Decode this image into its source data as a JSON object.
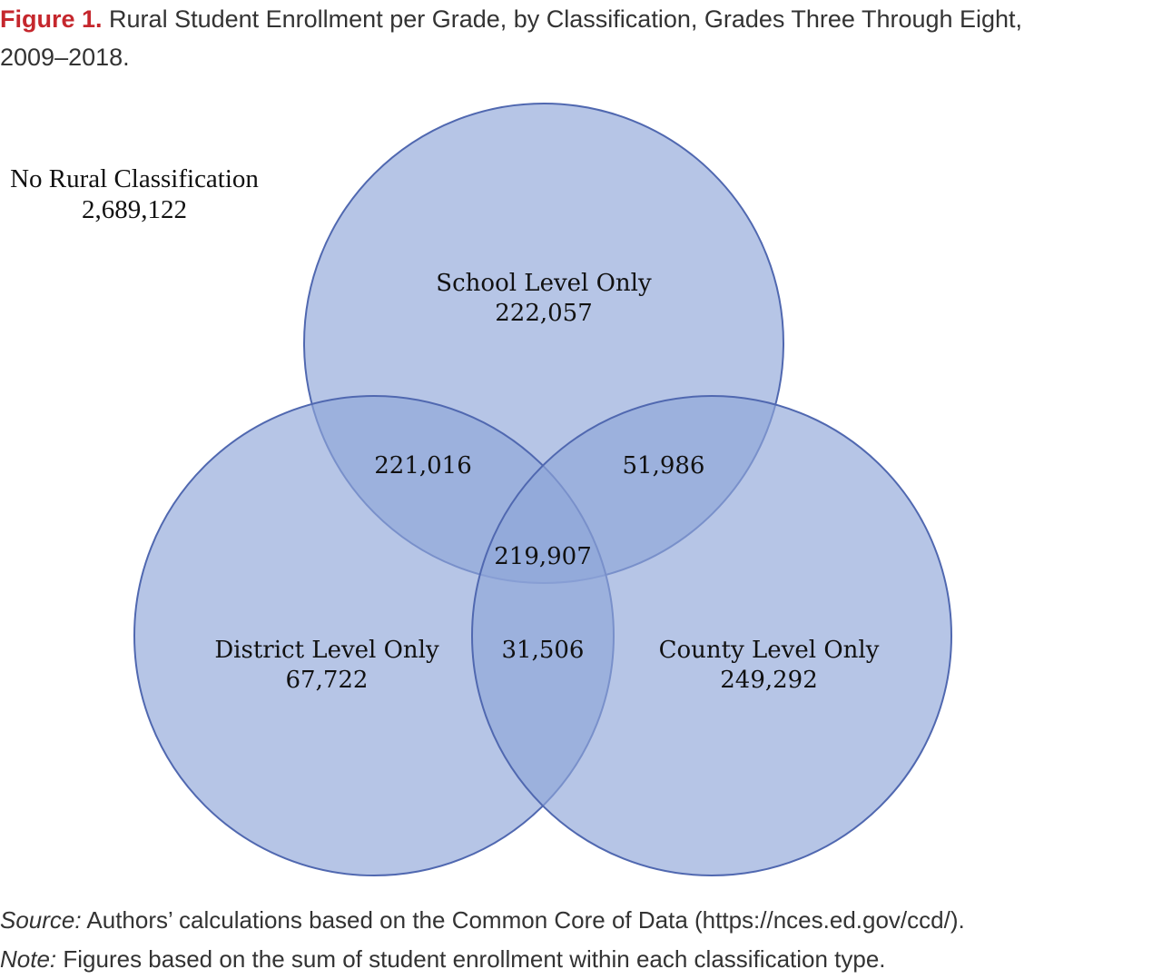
{
  "title": {
    "label": "Figure 1.",
    "text": "Rural Student Enrollment per Grade, by Classification, Grades Three Through Eight,",
    "text_line2": "2009–2018."
  },
  "outside": {
    "label": "No Rural Classification",
    "value": "2,689,122"
  },
  "sets": {
    "school": {
      "label": "School Level Only",
      "value": "222,057"
    },
    "district": {
      "label": "District Level Only",
      "value": "67,722"
    },
    "county": {
      "label": "County Level Only",
      "value": "249,292"
    }
  },
  "intersections": {
    "school_district": "221,016",
    "school_county": "51,986",
    "district_county": "31,506",
    "all_three": "219,907"
  },
  "colors": {
    "circle_fill": "#8fa6d8",
    "circle_stroke": "#5068b0",
    "title_accent": "#c5272d"
  },
  "footnotes": {
    "source_label": "Source:",
    "source_text": " Authors’ calculations based on the Common Core of Data (https://nces.ed.gov/ccd/).",
    "note_label": "Note:",
    "note_text": " Figures based on the sum of student enrollment within each classification type."
  }
}
